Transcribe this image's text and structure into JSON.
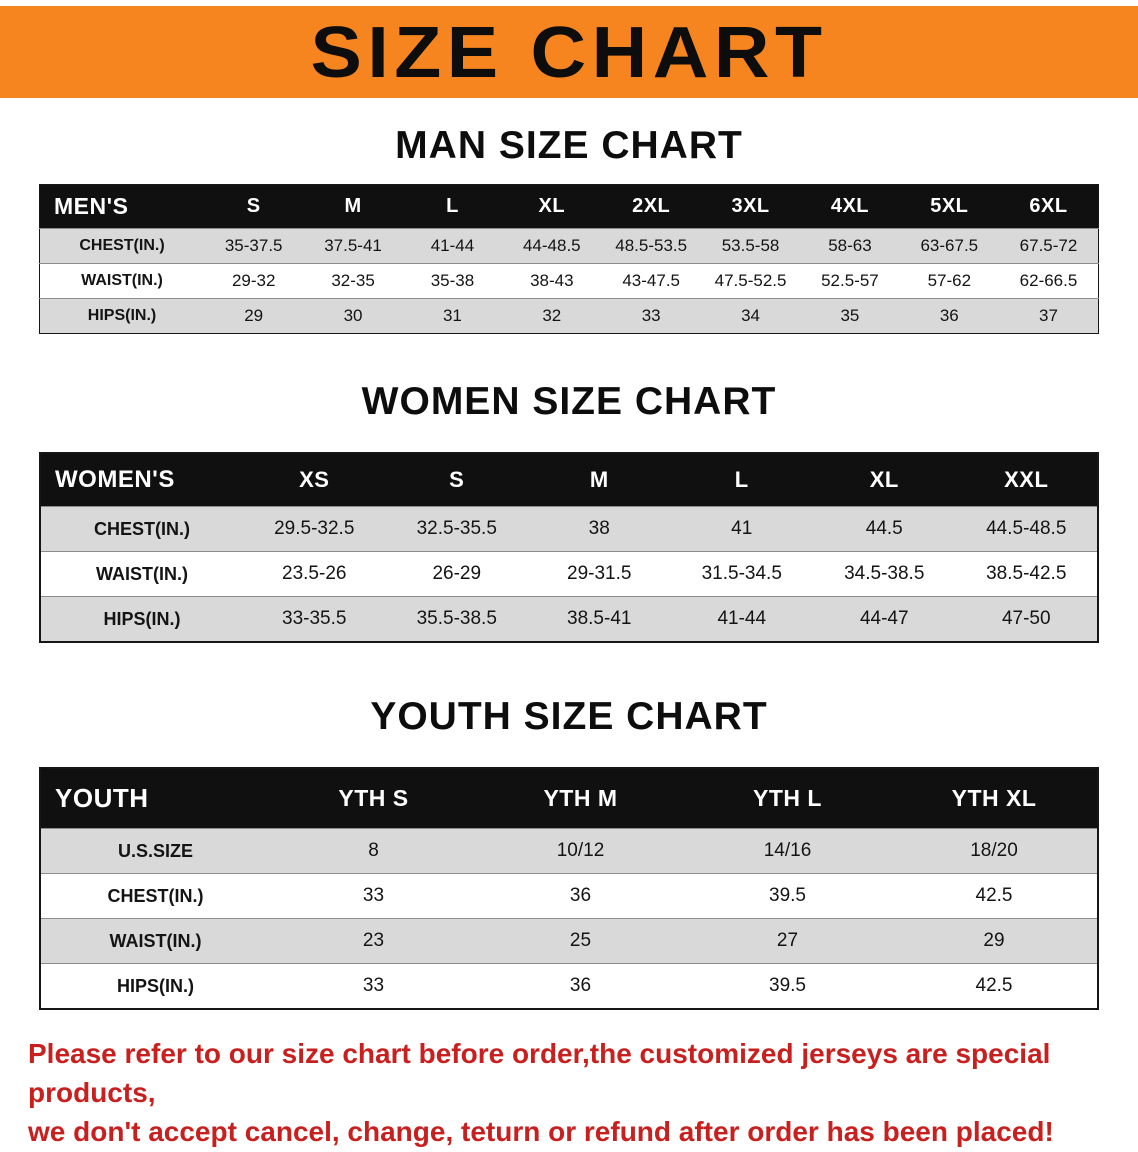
{
  "banner": {
    "title": "SIZE CHART",
    "bg_color": "#F6851F"
  },
  "sections": [
    {
      "heading": "MAN SIZE CHART",
      "header": [
        "MEN'S",
        "S",
        "M",
        "L",
        "XL",
        "2XL",
        "3XL",
        "4XL",
        "5XL",
        "6XL"
      ],
      "rows": [
        [
          "CHEST(IN.)",
          "35-37.5",
          "37.5-41",
          "41-44",
          "44-48.5",
          "48.5-53.5",
          "53.5-58",
          "58-63",
          "63-67.5",
          "67.5-72"
        ],
        [
          "WAIST(IN.)",
          "29-32",
          "32-35",
          "35-38",
          "38-43",
          "43-47.5",
          "47.5-52.5",
          "52.5-57",
          "57-62",
          "62-66.5"
        ],
        [
          "HIPS(IN.)",
          "29",
          "30",
          "31",
          "32",
          "33",
          "34",
          "35",
          "36",
          "37"
        ]
      ]
    },
    {
      "heading": "WOMEN SIZE CHART",
      "header": [
        "WOMEN'S",
        "XS",
        "S",
        "M",
        "L",
        "XL",
        "XXL"
      ],
      "rows": [
        [
          "CHEST(IN.)",
          "29.5-32.5",
          "32.5-35.5",
          "38",
          "41",
          "44.5",
          "44.5-48.5"
        ],
        [
          "WAIST(IN.)",
          "23.5-26",
          "26-29",
          "29-31.5",
          "31.5-34.5",
          "34.5-38.5",
          "38.5-42.5"
        ],
        [
          "HIPS(IN.)",
          "33-35.5",
          "35.5-38.5",
          "38.5-41",
          "41-44",
          "44-47",
          "47-50"
        ]
      ]
    },
    {
      "heading": "YOUTH SIZE CHART",
      "header": [
        "YOUTH",
        "YTH S",
        "YTH M",
        "YTH L",
        "YTH XL"
      ],
      "rows": [
        [
          "U.S.SIZE",
          "8",
          "10/12",
          "14/16",
          "18/20"
        ],
        [
          "CHEST(IN.)",
          "33",
          "36",
          "39.5",
          "42.5"
        ],
        [
          "WAIST(IN.)",
          "23",
          "25",
          "27",
          "29"
        ],
        [
          "HIPS(IN.)",
          "33",
          "36",
          "39.5",
          "42.5"
        ]
      ]
    }
  ],
  "disclaimer": {
    "lines": [
      "Please refer to our size chart before order,the customized jerseys are special products,",
      "we don't accept cancel, change, teturn or refund after order has been placed!"
    ],
    "text_color": "#C8201F"
  }
}
